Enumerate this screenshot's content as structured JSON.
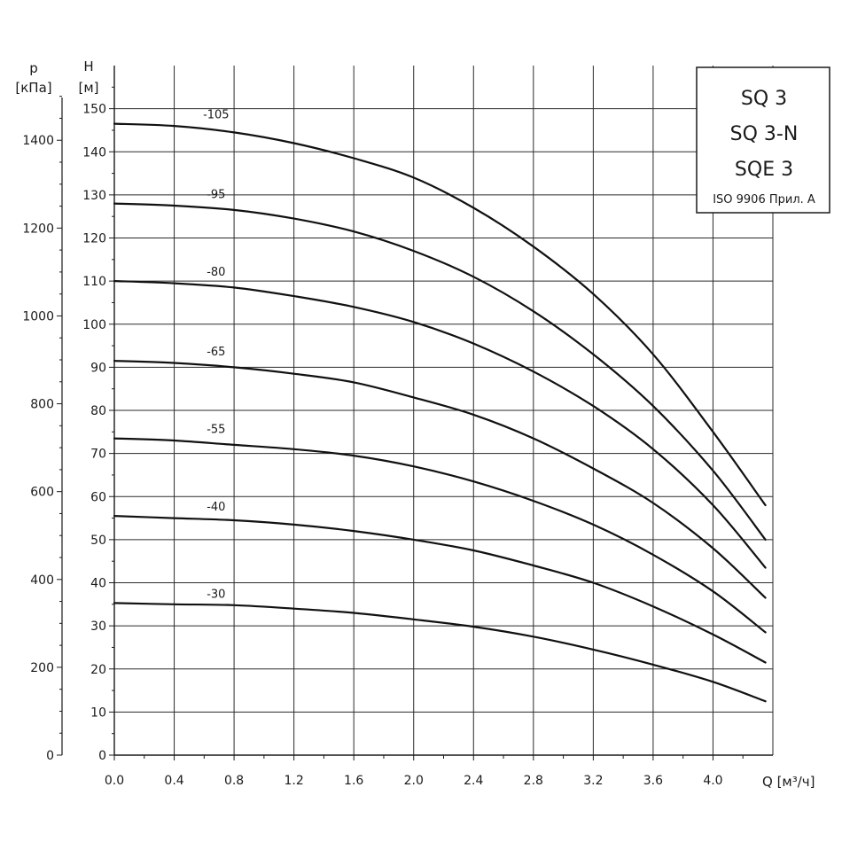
{
  "chart_data": {
    "type": "line",
    "title": "",
    "legend_box": {
      "position": "top-right",
      "lines": [
        "SQ 3",
        "SQ 3-N",
        "SQE 3"
      ],
      "standard": "ISO 9906 Прил. A"
    },
    "x_axis": {
      "label": "Q [м³/ч]",
      "range": [
        0.0,
        4.4
      ],
      "ticks": [
        "0.0",
        "0.4",
        "0.8",
        "1.2",
        "1.6",
        "2.0",
        "2.4",
        "2.8",
        "3.2",
        "3.6",
        "4.0"
      ],
      "tick_values": [
        0.0,
        0.4,
        0.8,
        1.2,
        1.6,
        2.0,
        2.4,
        2.8,
        3.2,
        3.6,
        4.0
      ]
    },
    "y_axis_left": {
      "label_line1": "H",
      "label_line2": "[м]",
      "range": [
        0,
        160
      ],
      "ticks": [
        "0",
        "10",
        "20",
        "30",
        "40",
        "50",
        "60",
        "70",
        "80",
        "90",
        "100",
        "110",
        "120",
        "130",
        "140",
        "150"
      ],
      "tick_values": [
        0,
        10,
        20,
        30,
        40,
        50,
        60,
        70,
        80,
        90,
        100,
        110,
        120,
        130,
        140,
        150
      ]
    },
    "y_axis_outer": {
      "label_line1": "p",
      "label_line2": "[кПа]",
      "range": [
        0,
        1570
      ],
      "ticks": [
        "0",
        "200",
        "400",
        "600",
        "800",
        "1000",
        "1200",
        "1400"
      ],
      "tick_values": [
        0,
        200,
        400,
        600,
        800,
        1000,
        1200,
        1400
      ]
    },
    "grid": true,
    "series": [
      {
        "name": "-105",
        "x": [
          0.0,
          0.4,
          0.8,
          1.2,
          1.6,
          2.0,
          2.4,
          2.8,
          3.2,
          3.6,
          4.0,
          4.35
        ],
        "y": [
          146.5,
          146,
          144.5,
          142,
          138.5,
          134,
          127,
          118,
          107,
          93,
          75,
          58
        ]
      },
      {
        "name": "-95",
        "x": [
          0.0,
          0.4,
          0.8,
          1.2,
          1.6,
          2.0,
          2.4,
          2.8,
          3.2,
          3.6,
          4.0,
          4.35
        ],
        "y": [
          128,
          127.5,
          126.5,
          124.5,
          121.5,
          117,
          111,
          103,
          93,
          81,
          66,
          50
        ]
      },
      {
        "name": "-80",
        "x": [
          0.0,
          0.4,
          0.8,
          1.2,
          1.6,
          2.0,
          2.4,
          2.8,
          3.2,
          3.6,
          4.0,
          4.35
        ],
        "y": [
          110,
          109.5,
          108.5,
          106.5,
          104,
          100.5,
          95.5,
          89,
          81,
          71,
          58,
          43.5
        ]
      },
      {
        "name": "-65",
        "x": [
          0.0,
          0.4,
          0.8,
          1.2,
          1.6,
          2.0,
          2.4,
          2.8,
          3.2,
          3.6,
          4.0,
          4.35
        ],
        "y": [
          91.5,
          91,
          90,
          88.5,
          86.5,
          83,
          79,
          73.5,
          66.5,
          58.5,
          48,
          36.5
        ]
      },
      {
        "name": "-55",
        "x": [
          0.0,
          0.4,
          0.8,
          1.2,
          1.6,
          2.0,
          2.4,
          2.8,
          3.2,
          3.6,
          4.0,
          4.35
        ],
        "y": [
          73.5,
          73,
          72,
          71,
          69.5,
          67,
          63.5,
          59,
          53.5,
          46.5,
          38,
          28.5
        ]
      },
      {
        "name": "-40",
        "x": [
          0.0,
          0.4,
          0.8,
          1.2,
          1.6,
          2.0,
          2.4,
          2.8,
          3.2,
          3.6,
          4.0,
          4.35
        ],
        "y": [
          55.5,
          55,
          54.5,
          53.5,
          52,
          50,
          47.5,
          44,
          40,
          34.5,
          28,
          21.5
        ]
      },
      {
        "name": "-30",
        "x": [
          0.0,
          0.4,
          0.8,
          1.2,
          1.6,
          2.0,
          2.4,
          2.8,
          3.2,
          3.6,
          4.0,
          4.35
        ],
        "y": [
          35.3,
          35,
          34.8,
          34,
          33,
          31.5,
          29.8,
          27.5,
          24.5,
          21,
          17,
          12.5
        ]
      }
    ]
  }
}
